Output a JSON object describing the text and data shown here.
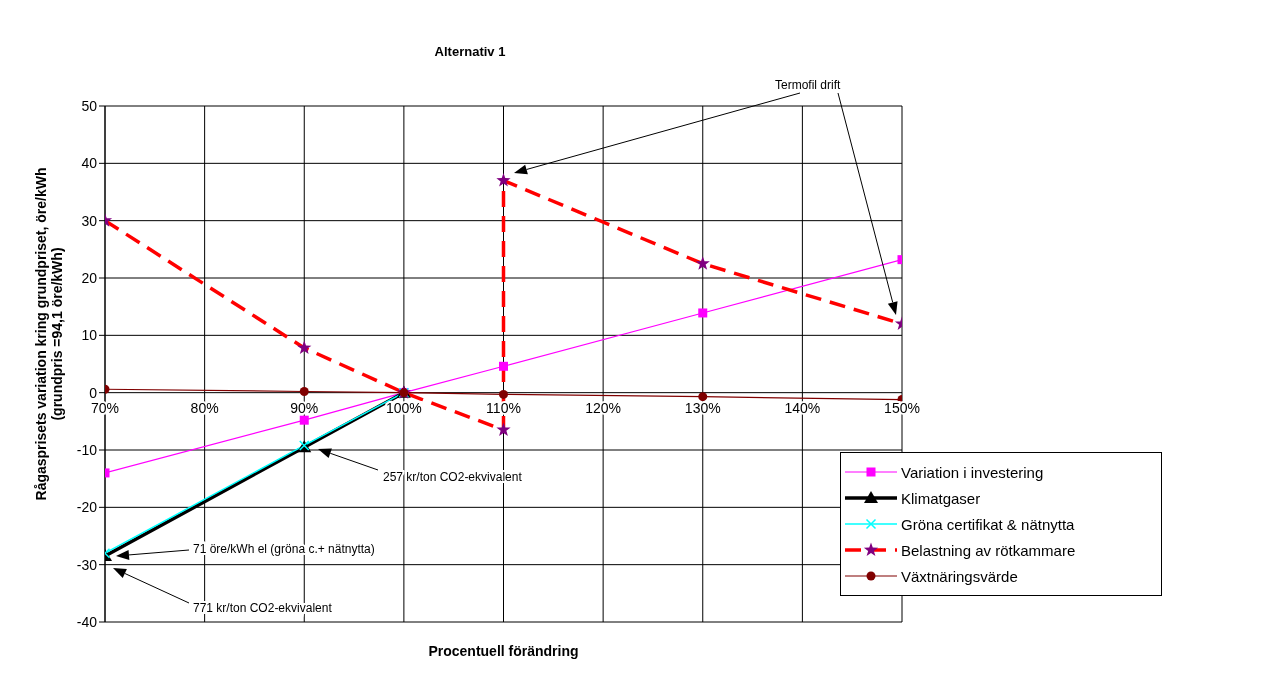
{
  "chart_data": {
    "type": "line",
    "title": "Alternativ 1",
    "xlabel": "Procentuell förändring",
    "ylabel": "Rågasprisets variation kring grundpriset, öre/kWh\n(grundpris =94,1 öre/kWh)",
    "xlim": [
      70,
      150
    ],
    "xticks": [
      {
        "value": 70,
        "label": "70%"
      },
      {
        "value": 80,
        "label": "80%"
      },
      {
        "value": 90,
        "label": "90%"
      },
      {
        "value": 100,
        "label": "100%"
      },
      {
        "value": 110,
        "label": "110%"
      },
      {
        "value": 120,
        "label": "120%"
      },
      {
        "value": 130,
        "label": "130%"
      },
      {
        "value": 140,
        "label": "140%"
      },
      {
        "value": 150,
        "label": "150%"
      }
    ],
    "ylim": [
      -40,
      50
    ],
    "yticks": [
      -40,
      -30,
      -20,
      -10,
      0,
      10,
      20,
      30,
      40,
      50
    ],
    "grid": true,
    "legend": "bottom right",
    "series": [
      {
        "name": "Variation i investering",
        "color": "#ff00ff",
        "marker": "square",
        "line_style": "solid",
        "x": [
          70,
          90,
          100,
          110,
          130,
          150
        ],
        "values": [
          -14,
          -4.8,
          0,
          4.6,
          13.9,
          23.2
        ]
      },
      {
        "name": "Klimatgaser",
        "color": "#000000",
        "marker": "triangle",
        "line_style": "solid",
        "x": [
          70,
          90,
          100
        ],
        "values": [
          -28.5,
          -9.5,
          0
        ]
      },
      {
        "name": "Gröna certifikat & nätnytta",
        "color": "#00ffff",
        "marker": "cross",
        "line_style": "solid",
        "x": [
          70,
          90,
          100
        ],
        "values": [
          -28,
          -9.2,
          0
        ]
      },
      {
        "name": "Belastning av rötkammare",
        "color": "#ff0000",
        "marker": "star",
        "line_style": "dashed",
        "x": [
          70,
          90,
          100,
          110,
          110,
          130,
          150
        ],
        "values": [
          30,
          7.8,
          0,
          -6.5,
          37,
          22.5,
          12
        ]
      },
      {
        "name": "Växtnäringsvärde",
        "color": "#800000",
        "marker": "circle",
        "line_style": "solid",
        "x": [
          70,
          90,
          100,
          110,
          130,
          150
        ],
        "values": [
          0.6,
          0.2,
          0,
          -0.3,
          -0.7,
          -1.2
        ]
      }
    ],
    "annotations": [
      "Termofil drift",
      "257 kr/ton CO2-ekvivalent",
      "71 öre/kWh el (gröna c.+ nätnytta)",
      "771 kr/ton CO2-ekvivalent"
    ]
  }
}
